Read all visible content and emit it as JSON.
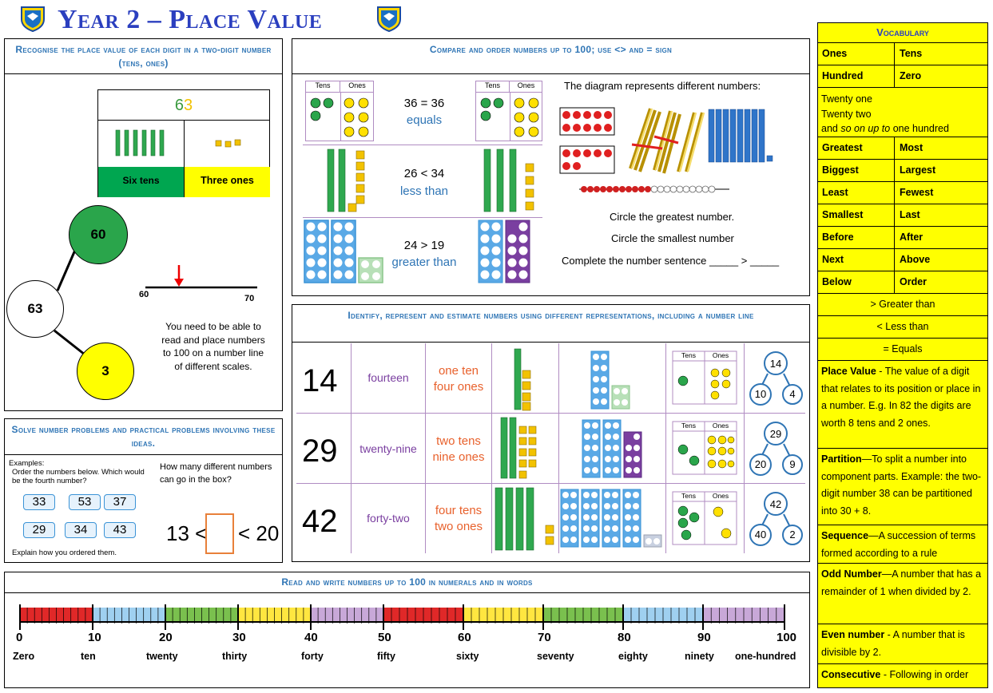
{
  "title": "Year 2 – Place Value",
  "colors": {
    "title": "#2b3fbf",
    "header": "#2f75b5",
    "vocab_bg": "#ffff00",
    "tens_green": "#00a650",
    "ones_yellow": "#ffff00"
  },
  "p1": {
    "header": "Recognise the place value of each digit in a two-digit number (tens, ones)",
    "number_tens_digit": "6",
    "number_ones_digit": "3",
    "tens_label": "Six tens",
    "ones_label": "Three ones",
    "partition_whole": "63",
    "partition_tens": "60",
    "partition_ones": "3",
    "nl_start": "60",
    "nl_end": "70",
    "note": "You need to be able to read and place numbers to 100 on a number line of different scales."
  },
  "p2": {
    "header": "Compare and order numbers up to 100; use <> and = sign",
    "rows": [
      {
        "expr": "36 = 36",
        "word": "equals"
      },
      {
        "expr": "26 < 34",
        "word": "less than"
      },
      {
        "expr": "24 > 19",
        "word": "greater than"
      }
    ],
    "tens_head": "Tens",
    "ones_head": "Ones",
    "diagram_text": "The diagram represents different numbers:",
    "task1": "Circle the greatest number.",
    "task2": "Circle the smallest number",
    "task3": "Complete the number sentence _____ > _____"
  },
  "p3": {
    "header": "Solve number problems and practical problems involving these ideas.",
    "examples_label": "Examples:",
    "q1": "Order the numbers below. Which would be the fourth number?",
    "cards": [
      "33",
      "53",
      "37",
      "29",
      "34",
      "43"
    ],
    "explain": "Explain how you ordered them.",
    "q2": "How many different numbers can go in the box?",
    "ineq_left": "13 <",
    "ineq_right": "< 20"
  },
  "p4": {
    "header": "Identify, represent and estimate numbers using different representations, including a number line",
    "rows": [
      {
        "num": "14",
        "word": "fourteen",
        "tens": "one ten",
        "ones": "four ones",
        "pt": "10",
        "po": "4"
      },
      {
        "num": "29",
        "word": "twenty-nine",
        "tens": "two tens",
        "ones": "nine ones",
        "pt": "20",
        "po": "9"
      },
      {
        "num": "42",
        "word": "forty-two",
        "tens": "four tens",
        "ones": "two ones",
        "pt": "40",
        "po": "2"
      }
    ]
  },
  "p5": {
    "header": "Read and write numbers up to 100 in numerals and in words",
    "numerals": [
      "0",
      "10",
      "20",
      "30",
      "40",
      "50",
      "60",
      "70",
      "80",
      "90",
      "100"
    ],
    "words": [
      "Zero",
      "ten",
      "twenty",
      "thirty",
      "forty",
      "fifty",
      "sixty",
      "seventy",
      "eighty",
      "ninety",
      "one-hundred"
    ]
  },
  "vocab": {
    "header": "Vocabulary",
    "pairs": [
      [
        "Ones",
        "Tens"
      ],
      [
        "Hundred",
        "Zero"
      ]
    ],
    "twenty": [
      "Twenty one",
      "Twenty two"
    ],
    "twenty_end_a": "and",
    "twenty_end_b": "so on up to",
    "twenty_end_c": "one hundred",
    "pairs2": [
      [
        "Greatest",
        "Most"
      ],
      [
        "Biggest",
        "Largest"
      ],
      [
        "Least",
        "Fewest"
      ],
      [
        "Smallest",
        "Last"
      ],
      [
        "Before",
        "After"
      ],
      [
        "Next",
        "Above"
      ],
      [
        "Below",
        "Order"
      ]
    ],
    "gt": "> Greater than",
    "lt": "<  Less than",
    "eq": "= Equals",
    "defs": [
      {
        "term": "Place Value",
        "text": " - The value of a digit that relates to its position or place in a number. E.g. In 82 the digits are worth 8 tens and 2 ones."
      },
      {
        "term": "Partition",
        "text": "—To split a number into component parts. Example: the two-digit number 38 can be partitioned into 30 + 8."
      },
      {
        "term": "Sequence",
        "text": "—A succession of terms formed according to a rule"
      },
      {
        "term": "Odd Number",
        "text": "—A number that has a remainder of 1 when divided by 2."
      },
      {
        "term": "Even number",
        "text": " -  A number that is divisible by 2."
      },
      {
        "term": "Consecutive",
        "text": " -  Following in order"
      }
    ]
  }
}
